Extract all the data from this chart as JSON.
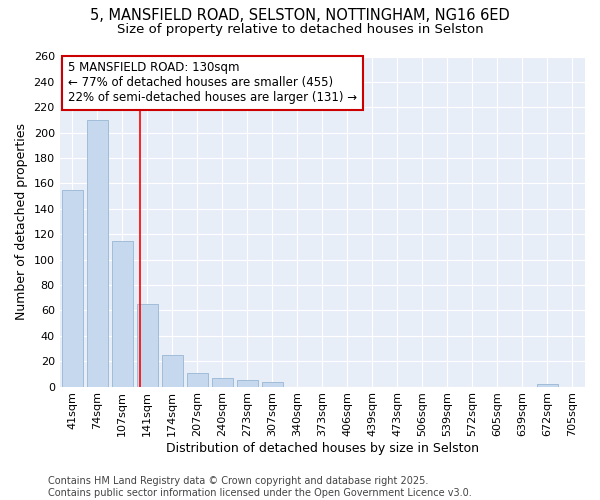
{
  "title_line1": "5, MANSFIELD ROAD, SELSTON, NOTTINGHAM, NG16 6ED",
  "title_line2": "Size of property relative to detached houses in Selston",
  "xlabel": "Distribution of detached houses by size in Selston",
  "ylabel": "Number of detached properties",
  "categories": [
    "41sqm",
    "74sqm",
    "107sqm",
    "141sqm",
    "174sqm",
    "207sqm",
    "240sqm",
    "273sqm",
    "307sqm",
    "340sqm",
    "373sqm",
    "406sqm",
    "439sqm",
    "473sqm",
    "506sqm",
    "539sqm",
    "572sqm",
    "605sqm",
    "639sqm",
    "672sqm",
    "705sqm"
  ],
  "values": [
    155,
    210,
    115,
    65,
    25,
    11,
    7,
    5,
    4,
    0,
    0,
    0,
    0,
    0,
    0,
    0,
    0,
    0,
    0,
    2,
    0
  ],
  "bar_color": "#c5d8ed",
  "bar_edge_color": "#a0bcd8",
  "red_line_x": 2.73,
  "annotation_line1": "5 MANSFIELD ROAD: 130sqm",
  "annotation_line2": "← 77% of detached houses are smaller (455)",
  "annotation_line3": "22% of semi-detached houses are larger (131) →",
  "annotation_box_facecolor": "#ffffff",
  "annotation_box_edgecolor": "#cc0000",
  "ylim": [
    0,
    260
  ],
  "yticks": [
    0,
    20,
    40,
    60,
    80,
    100,
    120,
    140,
    160,
    180,
    200,
    220,
    240,
    260
  ],
  "fig_bg": "#ffffff",
  "plot_bg": "#e8eef8",
  "grid_color": "#ffffff",
  "footer_line1": "Contains HM Land Registry data © Crown copyright and database right 2025.",
  "footer_line2": "Contains public sector information licensed under the Open Government Licence v3.0.",
  "title_fontsize": 10.5,
  "subtitle_fontsize": 9.5,
  "axis_label_fontsize": 9,
  "tick_fontsize": 8,
  "annotation_fontsize": 8.5,
  "footer_fontsize": 7
}
